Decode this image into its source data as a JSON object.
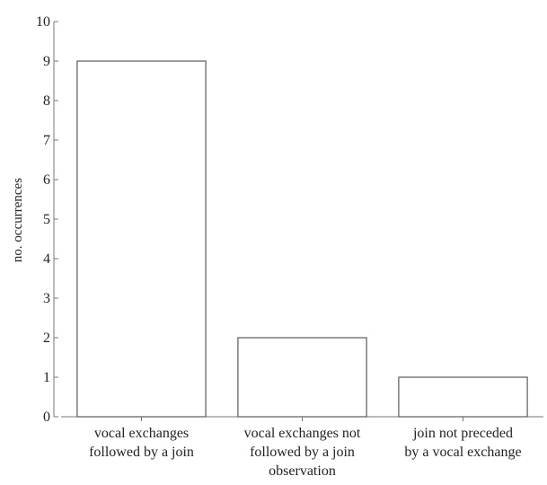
{
  "chart_data": {
    "type": "bar",
    "categories": [
      [
        "vocal exchanges",
        "followed by a join"
      ],
      [
        "vocal exchanges not",
        "followed by a join",
        "observation"
      ],
      [
        "join not preceded",
        "by a vocal exchange"
      ]
    ],
    "values": [
      9,
      2,
      1
    ],
    "title": "",
    "xlabel": "",
    "ylabel": "no. occurrences",
    "ylim": [
      0,
      10
    ],
    "yticks": [
      0,
      1,
      2,
      3,
      4,
      5,
      6,
      7,
      8,
      9,
      10
    ],
    "grid": false,
    "legend": "none",
    "colors": {
      "bar_fill": "#ffffff",
      "bar_stroke": "#666666",
      "axis": "#777777",
      "text": "#222222"
    }
  }
}
